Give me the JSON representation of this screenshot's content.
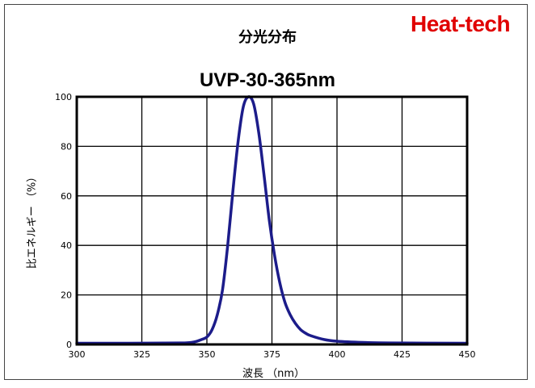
{
  "brand": "Heat-tech",
  "heading": "分光分布",
  "chart_data": {
    "type": "line",
    "title": "UVP-30-365nm",
    "xlabel": "波長 （nm）",
    "ylabel": "比エネルギー （%）",
    "xlim": [
      300,
      450
    ],
    "ylim": [
      0,
      100
    ],
    "xticks": [
      300,
      325,
      350,
      375,
      400,
      425,
      450
    ],
    "yticks": [
      0,
      20,
      40,
      60,
      80,
      100
    ],
    "grid": true,
    "line_color": "#1c1c8a",
    "series": [
      {
        "x": [
          300,
          320,
          340,
          345,
          348,
          350,
          352,
          354,
          356,
          358,
          360,
          362,
          364,
          366,
          368,
          370,
          372,
          374,
          376,
          378,
          380,
          382,
          384,
          386,
          388,
          390,
          395,
          400,
          410,
          420,
          450
        ],
        "y": [
          0.5,
          0.5,
          0.6,
          1,
          2,
          3,
          6,
          12,
          22,
          40,
          62,
          82,
          96,
          100,
          97,
          85,
          68,
          50,
          36,
          25,
          17,
          12,
          8.5,
          6,
          4.5,
          3.5,
          2,
          1.3,
          0.8,
          0.6,
          0.5
        ]
      }
    ]
  }
}
